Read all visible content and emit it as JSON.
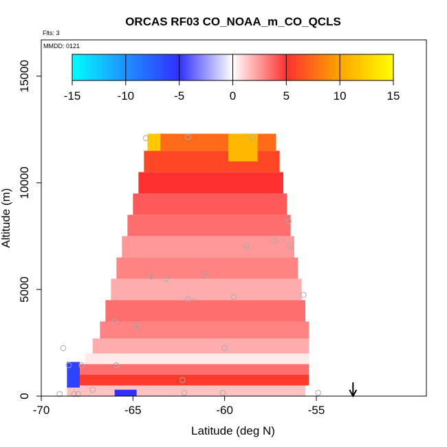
{
  "chart_data": {
    "type": "heatmap",
    "title": "ORCAS RF03 CO_NOAA_m_CO_QCLS",
    "annotations": {
      "flights": "Flts: 3",
      "date": "MMDD: 0121"
    },
    "xlabel": "Latitude (deg N)",
    "ylabel": "Altitude (m)",
    "xlim": [
      -70,
      -49
    ],
    "ylim": [
      0,
      16700
    ],
    "xticks": [
      -70,
      -65,
      -60,
      -55
    ],
    "yticks": [
      0,
      5000,
      10000,
      15000
    ],
    "colorbar": {
      "range": [
        -15,
        15
      ],
      "ticks": [
        -15,
        -10,
        -5,
        0,
        5,
        10,
        15
      ],
      "stops": [
        {
          "value": -15,
          "color": "#00ffff"
        },
        {
          "value": -10,
          "color": "#1e90ff"
        },
        {
          "value": -5,
          "color": "#3030ff"
        },
        {
          "value": 0,
          "color": "#ffffff"
        },
        {
          "value": 5,
          "color": "#ff3030"
        },
        {
          "value": 10,
          "color": "#ffa500"
        },
        {
          "value": 15,
          "color": "#ffff00"
        }
      ]
    },
    "field_bands": [
      {
        "alt": [
          0,
          500
        ],
        "lat": [
          -68.6,
          -55.6
        ],
        "value": 1.5
      },
      {
        "alt": [
          500,
          1000
        ],
        "lat": [
          -68.3,
          -55.4
        ],
        "value": 5.5
      },
      {
        "alt": [
          1000,
          1500
        ],
        "lat": [
          -68.0,
          -55.4
        ],
        "value": 3.5
      },
      {
        "alt": [
          1500,
          2000
        ],
        "lat": [
          -67.6,
          -55.4
        ],
        "value": 0.5
      },
      {
        "alt": [
          2000,
          2700
        ],
        "lat": [
          -67.2,
          -55.4
        ],
        "value": 2.0
      },
      {
        "alt": [
          2700,
          3500
        ],
        "lat": [
          -66.8,
          -55.4
        ],
        "value": 3.0
      },
      {
        "alt": [
          3500,
          4500
        ],
        "lat": [
          -66.5,
          -55.6
        ],
        "value": 3.5
      },
      {
        "alt": [
          4500,
          5500
        ],
        "lat": [
          -66.2,
          -55.8
        ],
        "value": 2.0
      },
      {
        "alt": [
          5500,
          6500
        ],
        "lat": [
          -65.9,
          -56.0
        ],
        "value": 3.0
      },
      {
        "alt": [
          6500,
          7500
        ],
        "lat": [
          -65.6,
          -56.2
        ],
        "value": 2.5
      },
      {
        "alt": [
          7500,
          8500
        ],
        "lat": [
          -65.3,
          -56.4
        ],
        "value": 3.5
      },
      {
        "alt": [
          8500,
          9500
        ],
        "lat": [
          -65.0,
          -56.6
        ],
        "value": 4.0
      },
      {
        "alt": [
          9500,
          10500
        ],
        "lat": [
          -64.7,
          -56.8
        ],
        "value": 5.0
      },
      {
        "alt": [
          10500,
          11500
        ],
        "lat": [
          -64.4,
          -57.0
        ],
        "value": 6.0
      },
      {
        "alt": [
          11500,
          12300
        ],
        "lat": [
          -64.2,
          -57.2
        ],
        "value": 7.5
      }
    ],
    "field_patches": [
      {
        "alt": [
          11000,
          12300
        ],
        "lat": [
          -59.8,
          -58.2
        ],
        "value": 11.0
      },
      {
        "alt": [
          11500,
          12300
        ],
        "lat": [
          -64.2,
          -63.5
        ],
        "value": 12.0
      },
      {
        "alt": [
          400,
          1600
        ],
        "lat": [
          -68.6,
          -67.9
        ],
        "value": -6.0
      },
      {
        "alt": [
          0,
          300
        ],
        "lat": [
          -66.0,
          -64.8
        ],
        "value": -5.0
      }
    ],
    "observations": [
      {
        "lat": -64.3,
        "alt": 12100
      },
      {
        "lat": -62.0,
        "alt": 12150
      },
      {
        "lat": -58.5,
        "alt": 12150
      },
      {
        "lat": -56.5,
        "alt": 8200
      },
      {
        "lat": -57.3,
        "alt": 7300
      },
      {
        "lat": -58.8,
        "alt": 7050
      },
      {
        "lat": -56.4,
        "alt": 7050
      },
      {
        "lat": -64.0,
        "alt": 5600
      },
      {
        "lat": -63.2,
        "alt": 5500
      },
      {
        "lat": -61.0,
        "alt": 5700
      },
      {
        "lat": -62.0,
        "alt": 4550
      },
      {
        "lat": -59.5,
        "alt": 4650
      },
      {
        "lat": -55.7,
        "alt": 4750
      },
      {
        "lat": -66.0,
        "alt": 3500
      },
      {
        "lat": -64.8,
        "alt": 3250
      },
      {
        "lat": -68.8,
        "alt": 2250
      },
      {
        "lat": -60.0,
        "alt": 2250
      },
      {
        "lat": -68.5,
        "alt": 1450
      },
      {
        "lat": -67.8,
        "alt": 1450
      },
      {
        "lat": -65.9,
        "alt": 1450
      },
      {
        "lat": -67.2,
        "alt": 300
      },
      {
        "lat": -69.0,
        "alt": 100
      },
      {
        "lat": -68.2,
        "alt": 100
      },
      {
        "lat": -68.0,
        "alt": 100
      },
      {
        "lat": -62.3,
        "alt": 750
      },
      {
        "lat": -62.2,
        "alt": 150
      },
      {
        "lat": -60.1,
        "alt": 150
      },
      {
        "lat": -54.9,
        "alt": 150
      }
    ],
    "arrow": {
      "lat": -53.0,
      "direction": "down"
    }
  }
}
